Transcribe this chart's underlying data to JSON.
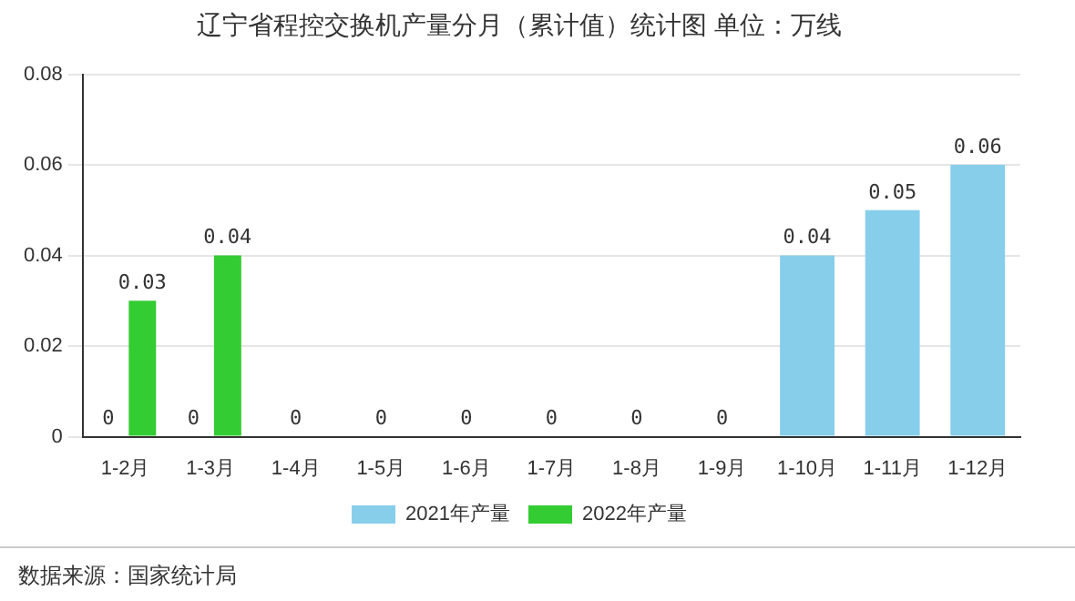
{
  "chart_data": {
    "type": "bar",
    "title": "辽宁省程控交换机产量分月（累计值）统计图 单位：万线",
    "categories": [
      "1-2月",
      "1-3月",
      "1-4月",
      "1-5月",
      "1-6月",
      "1-7月",
      "1-8月",
      "1-9月",
      "1-10月",
      "1-11月",
      "1-12月"
    ],
    "series": [
      {
        "name": "2021年产量",
        "color": "#87ceeb",
        "values": [
          0,
          0,
          0,
          0,
          0,
          0,
          0,
          0,
          0.04,
          0.05,
          0.06
        ]
      },
      {
        "name": "2022年产量",
        "color": "#33cc33",
        "values": [
          0.03,
          0.04,
          null,
          null,
          null,
          null,
          null,
          null,
          null,
          null,
          null
        ]
      }
    ],
    "ylim": [
      0,
      0.08
    ],
    "yticks": [
      0,
      0.02,
      0.04,
      0.06,
      0.08
    ],
    "grid": "y",
    "legend": "bottom",
    "data_labels": true,
    "annotations": [
      "数据来源：国家统计局"
    ]
  }
}
